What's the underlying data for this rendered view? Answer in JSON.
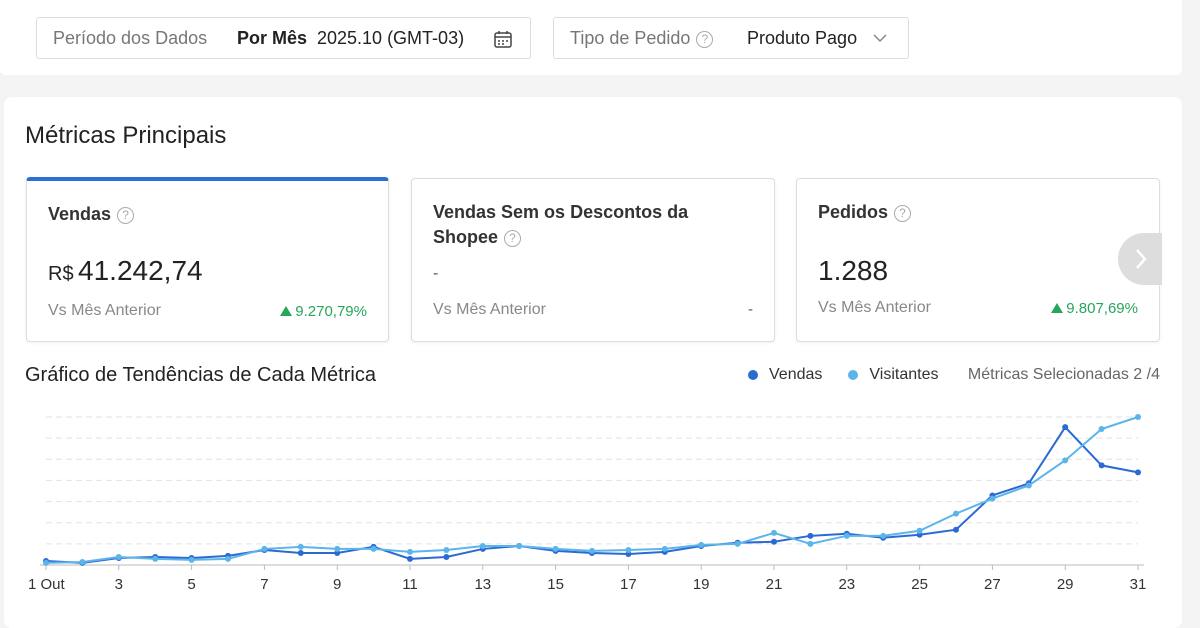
{
  "filters": {
    "period_label": "Período dos Dados",
    "period_mode": "Por Mês",
    "period_value": "2025.10 (GMT-03)",
    "order_type_label": "Tipo de Pedido",
    "order_type_value": "Produto Pago"
  },
  "section_title": "Métricas Principais",
  "metrics": [
    {
      "title": "Vendas",
      "currency": "R$",
      "value": "41.242,74",
      "compare_label": "Vs Mês Anterior",
      "change": "9.270,79%"
    },
    {
      "title": "Vendas Sem os Descontos da Shopee",
      "value": "-",
      "compare_label": "Vs Mês Anterior",
      "change": "-"
    },
    {
      "title": "Pedidos",
      "value": "1.288",
      "compare_label": "Vs Mês Anterior",
      "change": "9.807,69%"
    }
  ],
  "chart_data": {
    "type": "line",
    "title": "Gráfico de Tendências de Cada Métrica",
    "selected_label": "Métricas Selecionadas 2 /4",
    "categories": [
      "1 Out",
      null,
      "3",
      null,
      "5",
      null,
      "7",
      null,
      "9",
      null,
      "11",
      null,
      "13",
      null,
      "15",
      null,
      "17",
      null,
      "19",
      null,
      "21",
      null,
      "23",
      null,
      "25",
      null,
      "27",
      null,
      "29",
      null,
      "31"
    ],
    "series": [
      {
        "name": "Vendas",
        "color": "#2c6ad3",
        "values": [
          0.19,
          0.1,
          0.33,
          0.38,
          0.33,
          0.43,
          0.71,
          0.57,
          0.57,
          0.86,
          0.29,
          0.38,
          0.76,
          0.9,
          0.67,
          0.57,
          0.52,
          0.62,
          0.9,
          1.05,
          1.1,
          1.38,
          1.48,
          1.29,
          1.43,
          1.67,
          3.29,
          3.86,
          6.52,
          4.71,
          4.38
        ]
      },
      {
        "name": "Visitantes",
        "color": "#5bb5ea",
        "values": [
          0.1,
          0.14,
          0.38,
          0.29,
          0.24,
          0.29,
          0.76,
          0.86,
          0.76,
          0.76,
          0.62,
          0.71,
          0.9,
          0.9,
          0.76,
          0.67,
          0.71,
          0.76,
          0.95,
          1.0,
          1.52,
          1.0,
          1.38,
          1.38,
          1.62,
          2.43,
          3.14,
          3.76,
          4.95,
          6.43,
          7.0
        ]
      }
    ],
    "ylim": [
      0,
      7.2
    ],
    "yticks": [
      1,
      2,
      3,
      4,
      5,
      6,
      7
    ],
    "grid": true
  }
}
